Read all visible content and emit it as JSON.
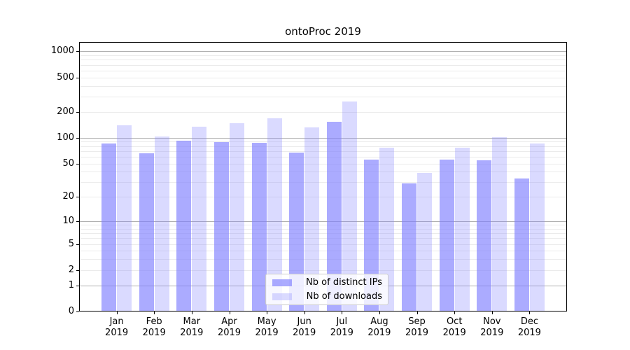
{
  "title": "ontoProc 2019",
  "legend": {
    "items": [
      {
        "label": "Nb of distinct IPs",
        "color": "rgba(127,127,255,0.66)"
      },
      {
        "label": "Nb of downloads",
        "color": "rgba(127,127,255,0.29)"
      }
    ],
    "position": "lower center"
  },
  "colors": {
    "bar_base": "#7f7fff",
    "bar_distinct_ips": "rgba(127,127,255,0.66)",
    "bar_downloads": "rgba(127,127,255,0.29)",
    "grid_major": "#b0b0b0",
    "grid_minor": "#ebebeb",
    "axis": "#000000"
  },
  "chart_data": {
    "type": "bar",
    "title": "ontoProc 2019",
    "categories": [
      "Jan",
      "Feb",
      "Mar",
      "Apr",
      "May",
      "Jun",
      "Jul",
      "Aug",
      "Sep",
      "Oct",
      "Nov",
      "Dec"
    ],
    "year": "2019",
    "series": [
      {
        "name": "Nb of distinct IPs",
        "values": [
          85,
          66,
          92,
          89,
          88,
          67,
          153,
          55,
          29,
          55,
          54,
          33
        ]
      },
      {
        "name": "Nb of downloads",
        "values": [
          139,
          104,
          135,
          147,
          167,
          131,
          262,
          76,
          39,
          76,
          102,
          86
        ]
      }
    ],
    "xlabel": "",
    "ylabel": "",
    "y_scale": "log1p",
    "y_ticks": [
      0,
      1,
      2,
      5,
      10,
      20,
      50,
      100,
      200,
      500,
      1000
    ],
    "y_major_gridlines": [
      1,
      10,
      100,
      1000
    ],
    "y_minor_gridlines": [
      2,
      3,
      4,
      5,
      6,
      7,
      8,
      9,
      20,
      30,
      40,
      50,
      60,
      70,
      80,
      90,
      200,
      300,
      400,
      500,
      600,
      700,
      800,
      900
    ],
    "ylim": [
      0,
      1280
    ],
    "grid": "horizontal",
    "legend_position": "lower center"
  }
}
